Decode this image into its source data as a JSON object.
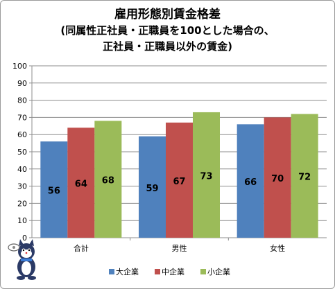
{
  "chart_data": {
    "type": "bar",
    "title": "雇用形態別賃金格差",
    "subtitle_line1": "(同属性正社員・正職員を100とした場合の、",
    "subtitle_line2": "正社員・正職員以外の賃金)",
    "categories": [
      "合計",
      "男性",
      "女性"
    ],
    "series": [
      {
        "name": "大企業",
        "values": [
          56,
          59,
          66
        ],
        "color": "#4f81bd"
      },
      {
        "name": "中企業",
        "values": [
          64,
          67,
          70
        ],
        "color": "#c0504d"
      },
      {
        "name": "小企業",
        "values": [
          68,
          73,
          72
        ],
        "color": "#9bbb59"
      }
    ],
    "ylim": [
      0,
      100
    ],
    "yticks": [
      "0",
      "10",
      "20",
      "30",
      "40",
      "50",
      "60",
      "70",
      "80",
      "90",
      "100"
    ],
    "grid": true,
    "legend_position": "bottom",
    "data_labels": true
  }
}
